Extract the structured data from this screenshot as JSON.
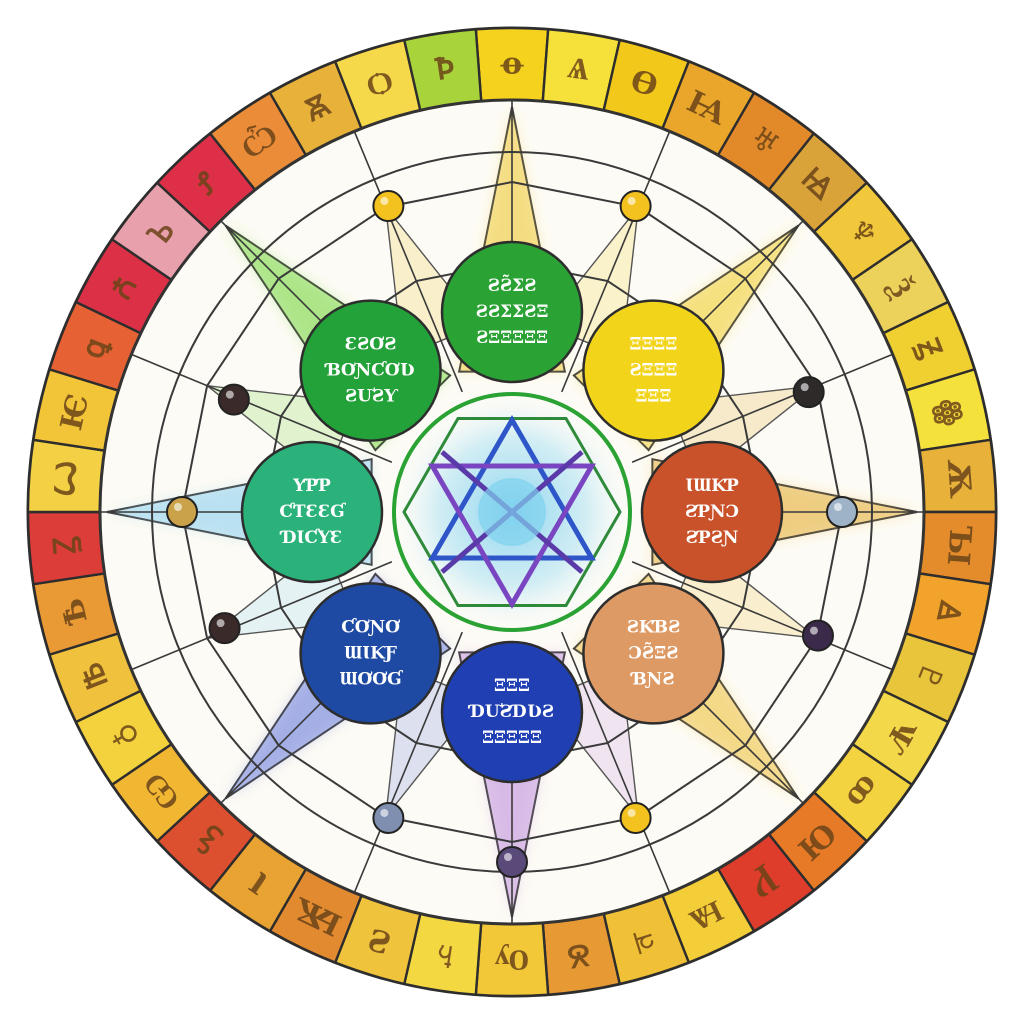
{
  "title": "",
  "palette": {
    "ring_cells": [
      "#f4d21e",
      "#f6e03a",
      "#f2c91a",
      "#e9a62b",
      "#e2892a",
      "#d9a33a",
      "#f1c83c",
      "#ecd25a",
      "#f0cf31",
      "#f5e13b",
      "#e8b13a",
      "#e48b2c",
      "#f1a32b",
      "#e8c53a",
      "#f3d94a",
      "#f4d340",
      "#e67a27",
      "#dd3d2a",
      "#f4ce39",
      "#f0c036",
      "#e79a33",
      "#f2c838",
      "#f4d842",
      "#f0c33c",
      "#e28a30",
      "#e8a333",
      "#dc4f2f",
      "#f1b733",
      "#f3d23d",
      "#efc13c",
      "#ea9a35",
      "#dd3d38",
      "#f3d044",
      "#f2c538",
      "#e66234",
      "#dc3046",
      "#e9a0ad",
      "#dd3048",
      "#ea8c38",
      "#e7b13a",
      "#f6d94a",
      "#a9d33a"
    ],
    "ray_colors": [
      "#f0d050",
      "#f3d64c",
      "#e7b94e",
      "#f1cb5a",
      "#c9a0e0",
      "#7f8ee0",
      "#9fd7ef",
      "#8bdc5a"
    ],
    "circle_colors": [
      "#2aa234",
      "#f2d41b",
      "#c9522a",
      "#de9a64",
      "#1f3fb3",
      "#1e4aa3",
      "#2ab27a",
      "#24a23a"
    ],
    "glyph_ink": "#6b4418",
    "circle_text": "#ffffff"
  },
  "outer_ring": {
    "cell_count": 42,
    "cell_glyphs": [
      "ꝋ",
      "Ѧ",
      "Ѳ",
      "Ꙗ",
      "♅",
      "Ꙝ",
      "♆",
      "Ѯ",
      "Ꙃ",
      "ꙮ",
      "Ѫ",
      "Ꙑ",
      "Ꙙ",
      "♇",
      "Ѱ",
      "ꝏ",
      "Ꙕ",
      "Ꝩ",
      "Ѩ",
      "♃",
      "Ꙋ",
      "Ѹ",
      "♄",
      "Ꙅ",
      "Ѭ",
      "Ꙇ",
      "Ꝣ",
      "Ѡ",
      "♁",
      "Ꙓ",
      "Ѣ",
      "Ꙁ",
      "Ꙍ",
      "Ѥ",
      "ꝗ",
      "Ꙉ",
      "Ꙏ",
      "Ꝭ",
      "Ѽ",
      "Ꙛ",
      "Ѻ",
      "Ꝥ"
    ]
  },
  "sectors": [
    {
      "name": "circle-green-top",
      "lines": [
        "ƧƧ̃ΣƧ",
        "ƧƧΣΣƧΞ",
        "ƧΞΞΞΞΞ"
      ]
    },
    {
      "name": "circle-yellow",
      "lines": [
        "ΞΞΞΞ",
        "ƧΞΞΞ",
        "ΞΞΞ"
      ]
    },
    {
      "name": "circle-orange-red",
      "lines": [
        "ƖƜƘƤ",
        "ƧƤƝƆ",
        "ƧƤƧƝ"
      ]
    },
    {
      "name": "circle-peach",
      "lines": [
        "ƧƘƁƧ",
        "ƆƧ̃ΞƧ",
        "ƁƝƧ"
      ]
    },
    {
      "name": "circle-royal-blue",
      "lines": [
        "ΞΞΞ",
        "ƊƯƧƊƲƧ",
        "ΞΞΞΞΞ"
      ]
    },
    {
      "name": "circle-navy",
      "lines": [
        "ƇƠƝƠ",
        "ƜƖƘƑ",
        "ƜƠƠƓ"
      ]
    },
    {
      "name": "circle-teal",
      "lines": [
        "ƳƤƤ",
        "ƇƬƐƐƓ",
        "ƊƖƇƳƐ"
      ]
    },
    {
      "name": "circle-green-left",
      "lines": [
        "ƐƧƠƧ",
        "ƁƠƝƇƠƲ",
        "ƧƯƧƳ"
      ]
    }
  ],
  "center_emblem": {
    "symbol": "hexagram-in-hexagon"
  }
}
